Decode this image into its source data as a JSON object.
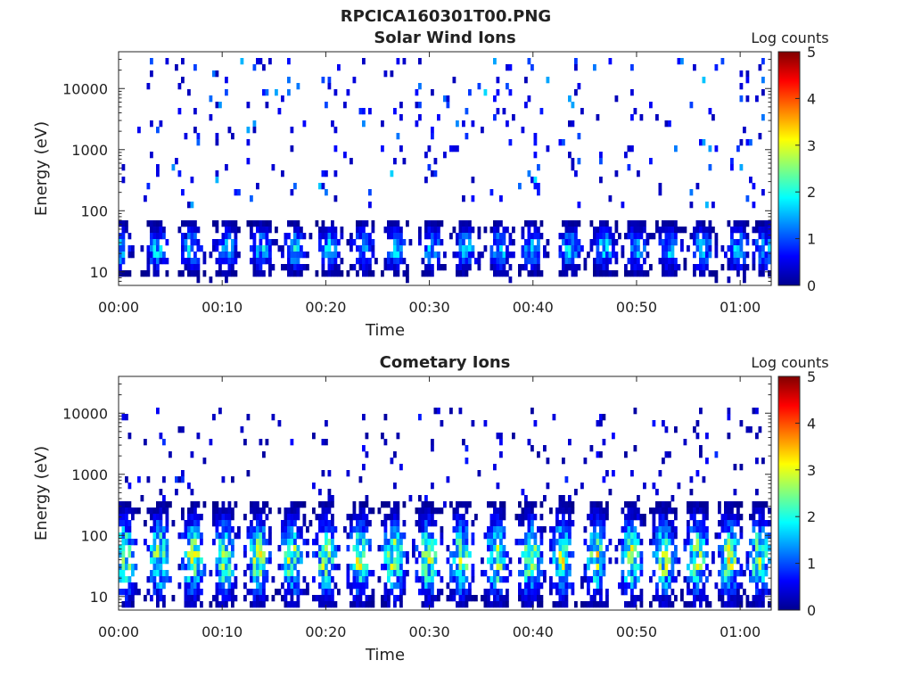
{
  "figure_title": "RPCICA160301T00.PNG",
  "chart_data": [
    {
      "type": "heatmap",
      "title": "Solar Wind Ions",
      "xlabel": "Time",
      "ylabel": "Energy (eV)",
      "y_scale": "log",
      "ylim": [
        6,
        40000
      ],
      "xlim": [
        0,
        63
      ],
      "x_unit": "minutes",
      "x_ticks": [
        0,
        10,
        20,
        30,
        40,
        50,
        60
      ],
      "x_tick_labels": [
        "00:00",
        "00:10",
        "00:20",
        "00:30",
        "00:40",
        "00:50",
        "01:00"
      ],
      "y_ticks": [
        10,
        100,
        1000,
        10000
      ],
      "y_tick_labels": [
        "10",
        "100",
        "1000",
        "10000"
      ],
      "colorbar": {
        "label": "Log counts",
        "range": [
          0,
          5
        ],
        "ticks": [
          "0",
          "1",
          "2",
          "3",
          "4",
          "5"
        ],
        "colormap": "jet"
      },
      "bursts_at_minutes": [
        0.0,
        3.7,
        7.0,
        10.4,
        13.8,
        17.0,
        20.4,
        23.6,
        26.8,
        30.2,
        33.6,
        36.9,
        40.0,
        43.6,
        46.9,
        50.0,
        53.2,
        56.4,
        59.8,
        62.4
      ],
      "band_energy_eV": [
        14,
        60
      ],
      "band_peak_log_counts": 2.0,
      "sparse_energy_eV": [
        100,
        30000
      ],
      "sparse_peak_log_counts": 1.8
    },
    {
      "type": "heatmap",
      "title": "Cometary Ions",
      "xlabel": "Time",
      "ylabel": "Energy (eV)",
      "y_scale": "log",
      "ylim": [
        6,
        40000
      ],
      "xlim": [
        0,
        63
      ],
      "x_unit": "minutes",
      "x_ticks": [
        0,
        10,
        20,
        30,
        40,
        50,
        60
      ],
      "x_tick_labels": [
        "00:00",
        "00:10",
        "00:20",
        "00:30",
        "00:40",
        "00:50",
        "01:00"
      ],
      "y_ticks": [
        10,
        100,
        1000,
        10000
      ],
      "y_tick_labels": [
        "10",
        "100",
        "1000",
        "10000"
      ],
      "colorbar": {
        "label": "Log counts",
        "range": [
          0,
          5
        ],
        "ticks": [
          "0",
          "1",
          "2",
          "3",
          "4",
          "5"
        ],
        "colormap": "jet"
      },
      "bursts_at_minutes": [
        0.6,
        3.9,
        7.2,
        10.3,
        13.5,
        16.8,
        20.0,
        23.3,
        26.6,
        29.9,
        33.1,
        36.5,
        39.8,
        42.9,
        46.2,
        49.5,
        52.7,
        55.9,
        59.0,
        61.9
      ],
      "band_energy_eV": [
        14,
        200
      ],
      "band_peak_log_counts": 3.3,
      "sparse_energy_eV": [
        250,
        12000
      ],
      "sparse_peak_log_counts": 1.0
    }
  ]
}
